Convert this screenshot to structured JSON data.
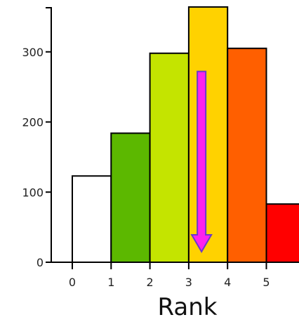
{
  "chart_data": {
    "type": "bar",
    "title": "",
    "xlabel": "Rank",
    "ylabel": "",
    "x_ticks": [
      "0",
      "1",
      "2",
      "3",
      "4",
      "5"
    ],
    "y_ticks": [
      "0",
      "100",
      "200",
      "300"
    ],
    "xlim": [
      -0.5,
      5.85
    ],
    "ylim": [
      0,
      365
    ],
    "bars": [
      {
        "rank": 0,
        "value": 123,
        "color": "#ffffff"
      },
      {
        "rank": 1,
        "value": 184,
        "color": "#5cb800"
      },
      {
        "rank": 2,
        "value": 298,
        "color": "#c4e400"
      },
      {
        "rank": 3,
        "value": 364,
        "color": "#ffd200"
      },
      {
        "rank": 4,
        "value": 305,
        "color": "#ff5f00"
      },
      {
        "rank": 5,
        "value": 83,
        "color": "#ff0000"
      }
    ],
    "annotation": {
      "type": "down-arrow",
      "x": 3.33,
      "y_from": 272,
      "y_to": 15,
      "color": "#ff22ee"
    },
    "grid": false,
    "legend": "none"
  }
}
